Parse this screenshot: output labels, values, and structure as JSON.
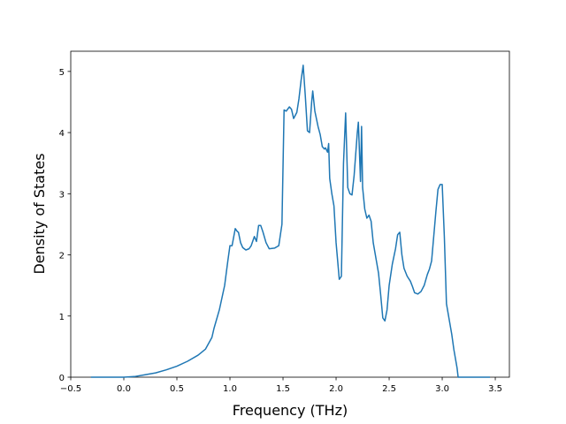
{
  "chart_data": {
    "type": "line",
    "x_label": "Frequency (THz)",
    "y_label": "Density of States",
    "color": "#1f77b4",
    "x": [
      -0.31,
      0.0,
      0.1,
      0.2,
      0.3,
      0.4,
      0.5,
      0.6,
      0.7,
      0.77,
      0.83,
      0.85,
      0.9,
      0.95,
      0.98,
      1.0,
      1.02,
      1.05,
      1.07,
      1.08,
      1.1,
      1.12,
      1.15,
      1.18,
      1.2,
      1.23,
      1.25,
      1.27,
      1.29,
      1.31,
      1.34,
      1.37,
      1.42,
      1.46,
      1.49,
      1.51,
      1.53,
      1.56,
      1.58,
      1.6,
      1.63,
      1.65,
      1.67,
      1.69,
      1.71,
      1.73,
      1.75,
      1.77,
      1.78,
      1.8,
      1.83,
      1.85,
      1.87,
      1.89,
      1.9,
      1.92,
      1.93,
      1.94,
      1.96,
      1.98,
      2.0,
      2.03,
      2.05,
      2.07,
      2.09,
      2.11,
      2.13,
      2.15,
      2.17,
      2.2,
      2.21,
      2.23,
      2.24,
      2.25,
      2.27,
      2.29,
      2.31,
      2.33,
      2.35,
      2.38,
      2.4,
      2.42,
      2.44,
      2.46,
      2.48,
      2.5,
      2.53,
      2.56,
      2.58,
      2.6,
      2.62,
      2.64,
      2.67,
      2.7,
      2.72,
      2.74,
      2.77,
      2.8,
      2.83,
      2.86,
      2.88,
      2.9,
      2.92,
      2.94,
      2.96,
      2.98,
      3.0,
      3.02,
      3.04,
      3.06,
      3.09,
      3.11,
      3.14,
      3.15,
      3.2,
      3.45
    ],
    "values": [
      0,
      0,
      0.01,
      0.04,
      0.07,
      0.12,
      0.18,
      0.26,
      0.36,
      0.46,
      0.65,
      0.8,
      1.1,
      1.5,
      1.9,
      2.15,
      2.15,
      2.43,
      2.38,
      2.37,
      2.2,
      2.12,
      2.08,
      2.1,
      2.15,
      2.3,
      2.22,
      2.48,
      2.48,
      2.38,
      2.2,
      2.1,
      2.11,
      2.15,
      2.5,
      4.37,
      4.35,
      4.42,
      4.38,
      4.23,
      4.33,
      4.55,
      4.85,
      5.1,
      4.6,
      4.03,
      4.0,
      4.5,
      4.68,
      4.35,
      4.1,
      3.97,
      3.77,
      3.73,
      3.75,
      3.68,
      3.82,
      3.25,
      3.0,
      2.8,
      2.2,
      1.6,
      1.65,
      3.5,
      4.32,
      3.1,
      3.0,
      2.98,
      3.3,
      4.0,
      4.17,
      3.2,
      4.1,
      3.1,
      2.75,
      2.6,
      2.65,
      2.55,
      2.2,
      1.9,
      1.7,
      1.35,
      0.97,
      0.92,
      1.1,
      1.5,
      1.85,
      2.1,
      2.33,
      2.37,
      2.0,
      1.78,
      1.65,
      1.57,
      1.48,
      1.38,
      1.36,
      1.4,
      1.5,
      1.68,
      1.77,
      1.9,
      2.3,
      2.7,
      3.07,
      3.15,
      3.15,
      2.3,
      1.2,
      1.0,
      0.7,
      0.45,
      0.15,
      0,
      0,
      0
    ],
    "xlim": [
      -0.5,
      3.633
    ],
    "ylim": [
      0,
      5.33
    ],
    "xticks": [
      {
        "value": -0.5,
        "label": "−0.5"
      },
      {
        "value": 0,
        "label": "0.0"
      },
      0.5,
      {
        "value": 1,
        "label": "1.0"
      },
      1.5,
      {
        "value": 2,
        "label": "2.0"
      },
      2.5,
      {
        "value": 3,
        "label": "3.0"
      },
      3.5
    ],
    "yticks": [
      0,
      1,
      2,
      3,
      4,
      5
    ]
  }
}
